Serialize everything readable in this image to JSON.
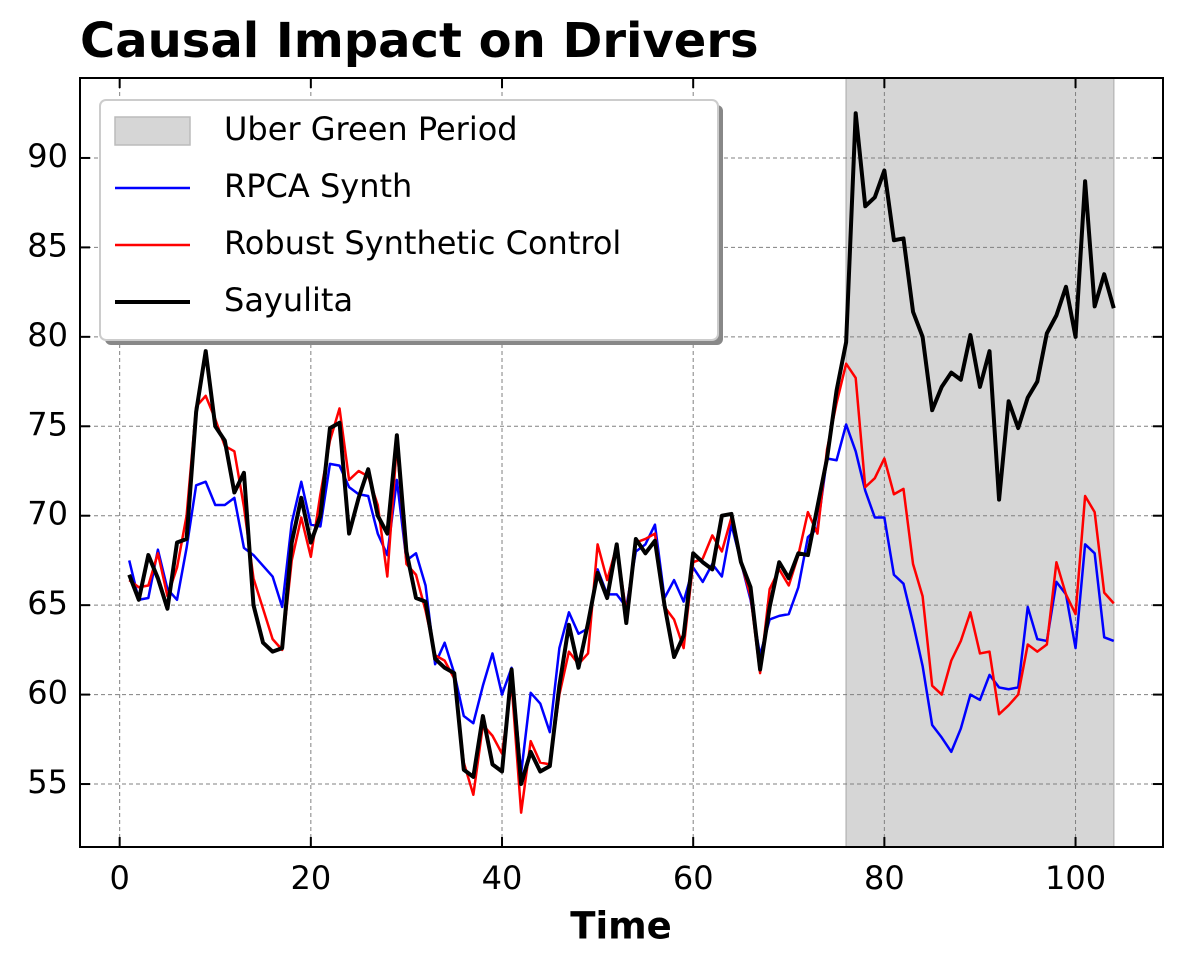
{
  "chart_data": {
    "type": "line",
    "title": "Causal Impact on Drivers",
    "x_label": "Time",
    "x": [
      1,
      2,
      3,
      4,
      5,
      6,
      7,
      8,
      9,
      10,
      11,
      12,
      13,
      14,
      15,
      16,
      17,
      18,
      19,
      20,
      21,
      22,
      23,
      24,
      25,
      26,
      27,
      28,
      29,
      30,
      31,
      32,
      33,
      34,
      35,
      36,
      37,
      38,
      39,
      40,
      41,
      42,
      43,
      44,
      45,
      46,
      47,
      48,
      49,
      50,
      51,
      52,
      53,
      54,
      55,
      56,
      57,
      58,
      59,
      60,
      61,
      62,
      63,
      64,
      65,
      66,
      67,
      68,
      69,
      70,
      71,
      72,
      73,
      74,
      75,
      76,
      77,
      78,
      79,
      80,
      81,
      82,
      83,
      84,
      85,
      86,
      87,
      88,
      89,
      90,
      91,
      92,
      93,
      94,
      95,
      96,
      97,
      98,
      99,
      100,
      101,
      102,
      103,
      104
    ],
    "shade": {
      "name": "Uber Green Period",
      "x": [
        76,
        104
      ],
      "color": "#d6d6d6"
    },
    "series": [
      {
        "name": "RPCA Synth",
        "color": "#0000ff",
        "width": 2.5,
        "values": [
          67.5,
          65.3,
          65.4,
          68.1,
          65.9,
          65.3,
          68.2,
          71.7,
          71.9,
          70.6,
          70.6,
          71.0,
          68.2,
          67.8,
          67.2,
          66.6,
          64.9,
          69.6,
          71.9,
          69.5,
          69.4,
          72.9,
          72.8,
          71.6,
          71.2,
          71.1,
          69.0,
          67.8,
          72.0,
          67.5,
          67.9,
          66.1,
          61.7,
          62.9,
          61.2,
          58.8,
          58.4,
          60.5,
          62.3,
          60.0,
          61.5,
          55.6,
          60.1,
          59.5,
          57.9,
          62.6,
          64.6,
          63.4,
          63.7,
          67.0,
          65.6,
          65.6,
          64.9,
          68.0,
          68.4,
          69.5,
          65.4,
          66.4,
          65.2,
          67.1,
          66.3,
          67.3,
          66.6,
          69.5,
          67.4,
          65.3,
          62.2,
          64.2,
          64.4,
          64.5,
          66.0,
          68.8,
          69.3,
          73.2,
          73.1,
          75.1,
          73.6,
          71.4,
          69.9,
          69.9,
          66.7,
          66.2,
          64.0,
          61.6,
          58.3,
          57.6,
          56.8,
          58.1,
          60.0,
          59.7,
          61.1,
          60.4,
          60.3,
          60.4,
          64.9,
          63.1,
          63.0,
          66.3,
          65.6,
          62.6,
          68.4,
          67.9,
          63.2,
          63.0
        ]
      },
      {
        "name": "Robust Synthetic Control",
        "color": "#ff0000",
        "width": 2.5,
        "values": [
          66.4,
          66.0,
          66.1,
          67.9,
          65.5,
          67.1,
          70.0,
          76.1,
          76.7,
          75.4,
          73.9,
          73.6,
          70.5,
          66.5,
          64.8,
          63.1,
          62.5,
          67.5,
          69.9,
          67.7,
          71.2,
          74.2,
          76.0,
          72.0,
          72.5,
          72.2,
          70.6,
          66.6,
          74.0,
          67.3,
          66.7,
          64.7,
          62.2,
          61.9,
          60.9,
          56.2,
          54.4,
          58.3,
          57.7,
          56.7,
          60.6,
          53.4,
          57.4,
          56.2,
          56.1,
          60.0,
          62.4,
          61.7,
          62.3,
          68.4,
          66.4,
          68.3,
          64.6,
          68.5,
          68.7,
          69.0,
          64.9,
          64.2,
          62.6,
          67.4,
          67.6,
          68.9,
          68.0,
          69.9,
          67.4,
          65.5,
          61.2,
          65.9,
          67.0,
          66.1,
          67.8,
          70.2,
          69.0,
          73.7,
          76.3,
          78.5,
          77.7,
          71.6,
          72.1,
          73.2,
          71.2,
          71.5,
          67.3,
          65.5,
          60.5,
          60.0,
          61.9,
          63.0,
          64.6,
          62.3,
          62.4,
          58.9,
          59.4,
          60.0,
          62.8,
          62.4,
          62.8,
          67.4,
          65.6,
          64.5,
          71.1,
          70.2,
          65.7,
          65.1
        ]
      },
      {
        "name": "Sayulita",
        "color": "#000000",
        "width": 4,
        "values": [
          66.7,
          65.3,
          67.8,
          66.5,
          64.8,
          68.5,
          68.7,
          75.8,
          79.2,
          75.0,
          74.2,
          71.3,
          72.4,
          65.0,
          62.9,
          62.4,
          62.6,
          68.5,
          71.0,
          68.5,
          70.0,
          74.9,
          75.2,
          69.0,
          71.0,
          72.6,
          70.0,
          69.0,
          74.5,
          68.0,
          65.4,
          65.2,
          62.0,
          61.5,
          61.2,
          55.8,
          55.4,
          58.8,
          56.1,
          55.7,
          61.4,
          55.0,
          56.8,
          55.7,
          56.0,
          60.5,
          63.9,
          61.5,
          64.0,
          66.8,
          65.4,
          68.4,
          64.0,
          68.7,
          67.9,
          68.6,
          65.0,
          62.1,
          63.3,
          67.9,
          67.4,
          67.0,
          70.0,
          70.1,
          67.4,
          66.0,
          61.4,
          64.9,
          67.4,
          66.5,
          67.9,
          67.8,
          70.5,
          73.2,
          77.0,
          79.7,
          92.5,
          87.3,
          87.8,
          89.3,
          85.4,
          85.5,
          81.4,
          80.0,
          75.9,
          77.2,
          78.0,
          77.6,
          80.1,
          77.2,
          79.2,
          70.9,
          76.4,
          74.9,
          76.6,
          77.5,
          80.2,
          81.2,
          82.8,
          80.0,
          88.7,
          81.7,
          83.5,
          81.6
        ]
      }
    ],
    "xlim": [
      -4.15,
      109.15
    ],
    "ylim": [
      51.48,
      94.47
    ],
    "xticks": [
      0,
      20,
      40,
      60,
      80,
      100
    ],
    "yticks": [
      55,
      60,
      65,
      70,
      75,
      80,
      85,
      90
    ],
    "grid": true,
    "legend": "upper left"
  }
}
